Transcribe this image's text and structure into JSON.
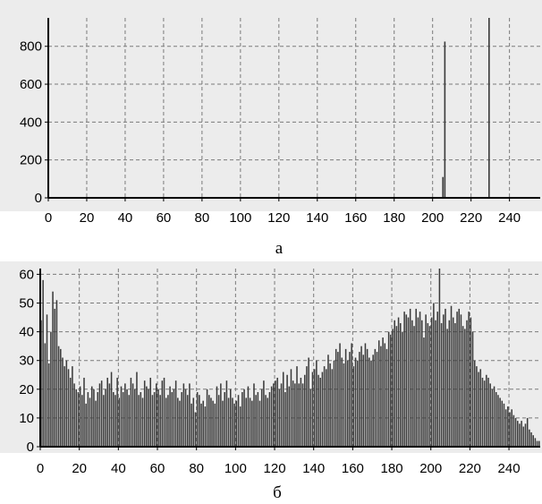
{
  "colors": {
    "panel_bg": "#ececec",
    "plot_bg": "#ececec",
    "grid": "#7a7a7a",
    "bar": "#3a3a3a",
    "axis": "#000000"
  },
  "chart_data": [
    {
      "type": "bar",
      "caption": "а",
      "xlim": [
        0,
        256
      ],
      "ylim": [
        0,
        950
      ],
      "xticks": [
        0,
        20,
        40,
        60,
        80,
        100,
        120,
        140,
        160,
        180,
        200,
        220,
        240
      ],
      "yticks": [
        0,
        200,
        400,
        600,
        800
      ],
      "grid": true,
      "series": [
        {
          "bins": [
            205,
            206,
            229
          ],
          "values": [
            110,
            825,
            950
          ]
        }
      ]
    },
    {
      "type": "bar",
      "caption": "б",
      "xlim": [
        0,
        256
      ],
      "ylim": [
        0,
        62
      ],
      "xticks": [
        0,
        20,
        40,
        60,
        80,
        100,
        120,
        140,
        160,
        180,
        200,
        220,
        240
      ],
      "yticks": [
        0,
        10,
        20,
        30,
        40,
        50,
        60
      ],
      "grid": true,
      "series": [
        {
          "bins_start": 0,
          "values": [
            44,
            58,
            36,
            46,
            29,
            40,
            54,
            48,
            51,
            35,
            34,
            31,
            28,
            30,
            27,
            24,
            28,
            22,
            20,
            19,
            21,
            18,
            24,
            15,
            19,
            17,
            21,
            20,
            16,
            19,
            22,
            23,
            18,
            20,
            24,
            22,
            26,
            19,
            18,
            24,
            17,
            21,
            19,
            22,
            20,
            18,
            24,
            22,
            20,
            26,
            18,
            19,
            17,
            23,
            21,
            20,
            24,
            18,
            19,
            22,
            20,
            18,
            23,
            24,
            17,
            18,
            21,
            19,
            20,
            23,
            17,
            16,
            19,
            22,
            20,
            18,
            22,
            15,
            17,
            12,
            19,
            18,
            15,
            16,
            14,
            20,
            18,
            17,
            16,
            15,
            21,
            18,
            22,
            16,
            19,
            23,
            17,
            20,
            17,
            15,
            16,
            18,
            14,
            19,
            20,
            17,
            21,
            17,
            16,
            22,
            18,
            19,
            16,
            20,
            23,
            18,
            17,
            19,
            21,
            22,
            23,
            24,
            20,
            22,
            26,
            19,
            25,
            21,
            27,
            23,
            22,
            28,
            22,
            24,
            22,
            25,
            28,
            31,
            20,
            26,
            27,
            30,
            25,
            24,
            26,
            28,
            27,
            32,
            29,
            27,
            30,
            34,
            33,
            36,
            31,
            29,
            34,
            30,
            33,
            36,
            28,
            31,
            30,
            33,
            35,
            32,
            36,
            34,
            31,
            30,
            32,
            34,
            33,
            37,
            35,
            38,
            36,
            34,
            40,
            39,
            41,
            44,
            42,
            45,
            43,
            40,
            47,
            46,
            45,
            48,
            44,
            42,
            48,
            45,
            47,
            44,
            38,
            46,
            43,
            42,
            45,
            50,
            44,
            47,
            62,
            43,
            46,
            48,
            41,
            44,
            49,
            45,
            43,
            47,
            48,
            46,
            42,
            41,
            44,
            47,
            45,
            40,
            30,
            28,
            26,
            27,
            24,
            23,
            25,
            24,
            22,
            20,
            21,
            19,
            18,
            17,
            16,
            15,
            13,
            14,
            12,
            13,
            11,
            10,
            9,
            8,
            9,
            7,
            8,
            10,
            6,
            5,
            4,
            3,
            2,
            2
          ]
        }
      ]
    }
  ]
}
